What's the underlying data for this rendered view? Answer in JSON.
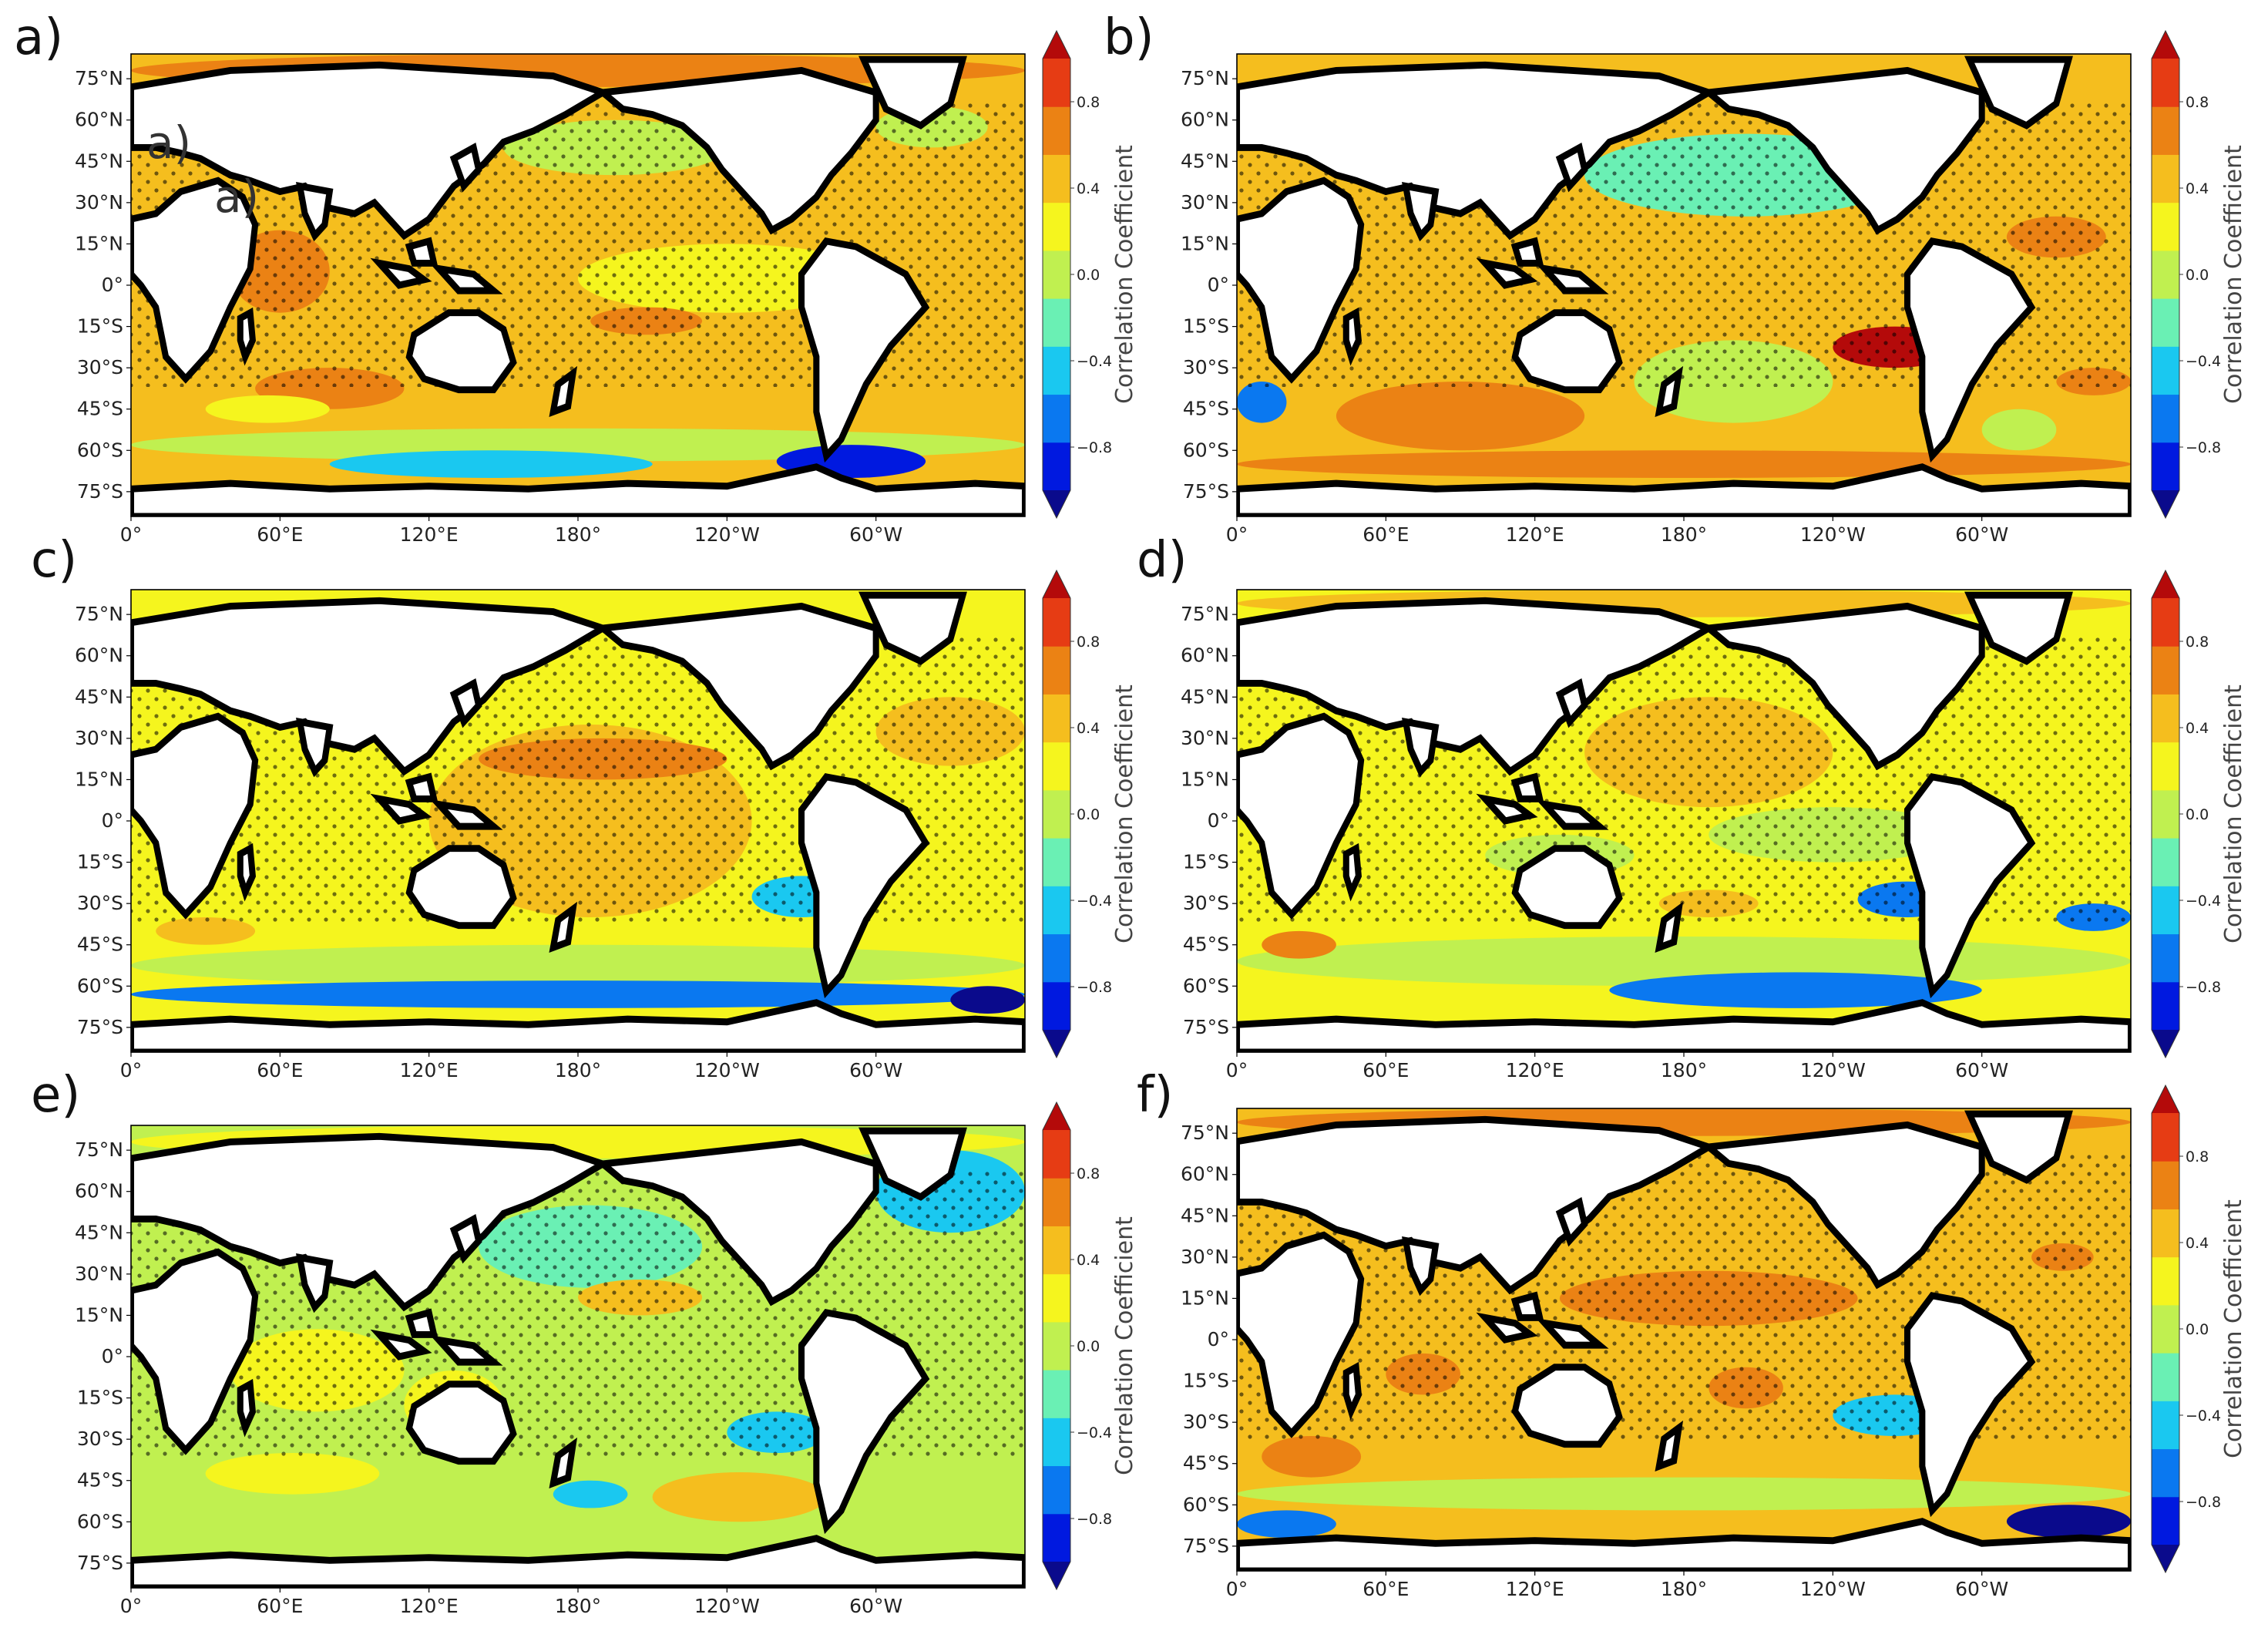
{
  "figure": {
    "colormap": [
      "#0a0a8c",
      "#0019e0",
      "#0a78f0",
      "#1ac8f0",
      "#6af0b4",
      "#c0f050",
      "#f5f51e",
      "#f5be1e",
      "#eb8214",
      "#e63c14",
      "#b40a0a"
    ],
    "land_color": "#ffffff",
    "coast_color": "#000000",
    "stipple_color": "#000000"
  },
  "artifact_labels": [
    "a)",
    "a)"
  ],
  "chart_data": [
    {
      "type": "heatmap",
      "panel": "a)",
      "x_ticks": [
        "0°",
        "60°E",
        "120°E",
        "180°",
        "120°W",
        "60°W"
      ],
      "y_ticks": [
        "75°N",
        "60°N",
        "45°N",
        "30°N",
        "15°N",
        "0°",
        "15°S",
        "30°S",
        "45°S",
        "60°S",
        "75°S"
      ],
      "xlim": [
        0,
        360
      ],
      "ylim": [
        -84,
        84
      ],
      "colorbar": {
        "label": "Correlation Coefficient",
        "ticks": [
          "0.8",
          "0.4",
          "0.0",
          "−0.4",
          "−0.8"
        ],
        "range": [
          -1,
          1
        ],
        "extend": "both"
      },
      "background_value": 0.45,
      "regions": [
        {
          "lon": [
            0,
            360
          ],
          "lat": [
            72,
            84
          ],
          "value": 0.6
        },
        {
          "lon": [
            150,
            240
          ],
          "lat": [
            40,
            60
          ],
          "value": 0.1
        },
        {
          "lon": [
            300,
            345
          ],
          "lat": [
            50,
            65
          ],
          "value": 0.1
        },
        {
          "lon": [
            120,
            250
          ],
          "lat": [
            5,
            25
          ],
          "value": 0.55
        },
        {
          "lon": [
            180,
            300
          ],
          "lat": [
            -10,
            15
          ],
          "value": 0.2
        },
        {
          "lon": [
            40,
            80
          ],
          "lat": [
            -10,
            20
          ],
          "value": 0.6
        },
        {
          "lon": [
            50,
            110
          ],
          "lat": [
            -45,
            -30
          ],
          "value": 0.6
        },
        {
          "lon": [
            185,
            230
          ],
          "lat": [
            -18,
            -8
          ],
          "value": 0.65
        },
        {
          "lon": [
            30,
            80
          ],
          "lat": [
            -50,
            -40
          ],
          "value": 0.2
        },
        {
          "lon": [
            0,
            360
          ],
          "lat": [
            -64,
            -52
          ],
          "value": 0.05
        },
        {
          "lon": [
            260,
            320
          ],
          "lat": [
            -70,
            -58
          ],
          "value": -0.75
        },
        {
          "lon": [
            80,
            210
          ],
          "lat": [
            -70,
            -60
          ],
          "value": -0.4
        }
      ]
    },
    {
      "type": "heatmap",
      "panel": "b)",
      "x_ticks": [
        "0°",
        "60°E",
        "120°E",
        "180°",
        "120°W",
        "60°W"
      ],
      "y_ticks": [
        "75°N",
        "60°N",
        "45°N",
        "30°N",
        "15°N",
        "0°",
        "15°S",
        "30°S",
        "45°S",
        "60°S",
        "75°S"
      ],
      "xlim": [
        0,
        360
      ],
      "ylim": [
        -84,
        84
      ],
      "colorbar": {
        "label": "Correlation Coefficient",
        "ticks": [
          "0.8",
          "0.4",
          "0.0",
          "−0.4",
          "−0.8"
        ],
        "range": [
          -1,
          1
        ],
        "extend": "both"
      },
      "background_value": 0.45,
      "regions": [
        {
          "lon": [
            140,
            270
          ],
          "lat": [
            25,
            55
          ],
          "value": -0.05
        },
        {
          "lon": [
            160,
            240
          ],
          "lat": [
            -50,
            -20
          ],
          "value": 0.0
        },
        {
          "lon": [
            0,
            20
          ],
          "lat": [
            -50,
            -35
          ],
          "value": -0.6
        },
        {
          "lon": [
            40,
            140
          ],
          "lat": [
            -60,
            -35
          ],
          "value": 0.7
        },
        {
          "lon": [
            240,
            290
          ],
          "lat": [
            -30,
            -15
          ],
          "value": 0.85
        },
        {
          "lon": [
            330,
            360
          ],
          "lat": [
            -40,
            -30
          ],
          "value": 0.75
        },
        {
          "lon": [
            310,
            350
          ],
          "lat": [
            10,
            25
          ],
          "value": 0.6
        },
        {
          "lon": [
            300,
            330
          ],
          "lat": [
            -60,
            -45
          ],
          "value": 0.0
        },
        {
          "lon": [
            0,
            360
          ],
          "lat": [
            -70,
            -60
          ],
          "value": 0.65
        },
        {
          "lon": [
            300,
            360
          ],
          "lat": [
            50,
            75
          ],
          "value": 0.55
        }
      ]
    },
    {
      "type": "heatmap",
      "panel": "c)",
      "x_ticks": [
        "0°",
        "60°E",
        "120°E",
        "180°",
        "120°W",
        "60°W"
      ],
      "y_ticks": [
        "75°N",
        "60°N",
        "45°N",
        "30°N",
        "15°N",
        "0°",
        "15°S",
        "30°S",
        "45°S",
        "60°S",
        "75°S"
      ],
      "xlim": [
        0,
        360
      ],
      "ylim": [
        -84,
        84
      ],
      "colorbar": {
        "label": "Correlation Coefficient",
        "ticks": [
          "0.8",
          "0.4",
          "0.0",
          "−0.4",
          "−0.8"
        ],
        "range": [
          -1,
          1
        ],
        "extend": "both"
      },
      "background_value": 0.25,
      "regions": [
        {
          "lon": [
            120,
            250
          ],
          "lat": [
            -35,
            35
          ],
          "value": 0.5
        },
        {
          "lon": [
            140,
            240
          ],
          "lat": [
            15,
            30
          ],
          "value": 0.65
        },
        {
          "lon": [
            0,
            360
          ],
          "lat": [
            -60,
            -45
          ],
          "value": 0.05
        },
        {
          "lon": [
            250,
            290
          ],
          "lat": [
            -35,
            -20
          ],
          "value": -0.4
        },
        {
          "lon": [
            0,
            360
          ],
          "lat": [
            -68,
            -58
          ],
          "value": -0.45
        },
        {
          "lon": [
            330,
            360
          ],
          "lat": [
            -70,
            -60
          ],
          "value": -0.8
        },
        {
          "lon": [
            10,
            50
          ],
          "lat": [
            -45,
            -35
          ],
          "value": 0.55
        },
        {
          "lon": [
            300,
            360
          ],
          "lat": [
            20,
            45
          ],
          "value": 0.45
        },
        {
          "lon": [
            40,
            110
          ],
          "lat": [
            -30,
            0
          ],
          "value": 0.25
        }
      ]
    },
    {
      "type": "heatmap",
      "panel": "d)",
      "x_ticks": [
        "0°",
        "60°E",
        "120°E",
        "180°",
        "120°W",
        "60°W"
      ],
      "y_ticks": [
        "75°N",
        "60°N",
        "45°N",
        "30°N",
        "15°N",
        "0°",
        "15°S",
        "30°S",
        "45°S",
        "60°S",
        "75°S"
      ],
      "xlim": [
        0,
        360
      ],
      "ylim": [
        -84,
        84
      ],
      "colorbar": {
        "label": "Correlation Coefficient",
        "ticks": [
          "0.8",
          "0.4",
          "0.0",
          "−0.4",
          "−0.8"
        ],
        "range": [
          -1,
          1
        ],
        "extend": "both"
      },
      "background_value": 0.3,
      "regions": [
        {
          "lon": [
            140,
            240
          ],
          "lat": [
            5,
            45
          ],
          "value": 0.45
        },
        {
          "lon": [
            190,
            290
          ],
          "lat": [
            -15,
            5
          ],
          "value": 0.1
        },
        {
          "lon": [
            100,
            160
          ],
          "lat": [
            -20,
            -5
          ],
          "value": 0.05
        },
        {
          "lon": [
            0,
            360
          ],
          "lat": [
            -60,
            -42
          ],
          "value": 0.05
        },
        {
          "lon": [
            250,
            290
          ],
          "lat": [
            -35,
            -22
          ],
          "value": -0.5
        },
        {
          "lon": [
            330,
            360
          ],
          "lat": [
            -40,
            -30
          ],
          "value": -0.55
        },
        {
          "lon": [
            150,
            300
          ],
          "lat": [
            -68,
            -55
          ],
          "value": -0.5
        },
        {
          "lon": [
            10,
            40
          ],
          "lat": [
            -50,
            -40
          ],
          "value": 0.65
        },
        {
          "lon": [
            170,
            210
          ],
          "lat": [
            -35,
            -25
          ],
          "value": 0.5
        },
        {
          "lon": [
            0,
            360
          ],
          "lat": [
            74,
            84
          ],
          "value": 0.55
        }
      ]
    },
    {
      "type": "heatmap",
      "panel": "e)",
      "x_ticks": [
        "0°",
        "60°E",
        "120°E",
        "180°",
        "120°W",
        "60°W"
      ],
      "y_ticks": [
        "75°N",
        "60°N",
        "45°N",
        "30°N",
        "15°N",
        "0°",
        "15°S",
        "30°S",
        "45°S",
        "60°S",
        "75°S"
      ],
      "xlim": [
        0,
        360
      ],
      "ylim": [
        -84,
        84
      ],
      "colorbar": {
        "label": "Correlation Coefficient",
        "ticks": [
          "0.8",
          "0.4",
          "0.0",
          "−0.4",
          "−0.8"
        ],
        "range": [
          -1,
          1
        ],
        "extend": "both"
      },
      "background_value": 0.05,
      "regions": [
        {
          "lon": [
            140,
            230
          ],
          "lat": [
            25,
            55
          ],
          "value": -0.2
        },
        {
          "lon": [
            300,
            360
          ],
          "lat": [
            45,
            75
          ],
          "value": -0.3
        },
        {
          "lon": [
            180,
            230
          ],
          "lat": [
            15,
            28
          ],
          "value": 0.45
        },
        {
          "lon": [
            110,
            150
          ],
          "lat": [
            -30,
            -5
          ],
          "value": 0.3
        },
        {
          "lon": [
            30,
            100
          ],
          "lat": [
            -50,
            -35
          ],
          "value": 0.25
        },
        {
          "lon": [
            210,
            280
          ],
          "lat": [
            -60,
            -42
          ],
          "value": 0.5
        },
        {
          "lon": [
            240,
            280
          ],
          "lat": [
            -35,
            -20
          ],
          "value": -0.35
        },
        {
          "lon": [
            170,
            200
          ],
          "lat": [
            -55,
            -45
          ],
          "value": -0.35
        },
        {
          "lon": [
            0,
            360
          ],
          "lat": [
            72,
            84
          ],
          "value": 0.2
        },
        {
          "lon": [
            40,
            110
          ],
          "lat": [
            -20,
            10
          ],
          "value": 0.2
        }
      ]
    },
    {
      "type": "heatmap",
      "panel": "f)",
      "x_ticks": [
        "0°",
        "60°E",
        "120°E",
        "180°",
        "120°W",
        "60°W"
      ],
      "y_ticks": [
        "75°N",
        "60°N",
        "45°N",
        "30°N",
        "15°N",
        "0°",
        "15°S",
        "30°S",
        "45°S",
        "60°S",
        "75°S"
      ],
      "xlim": [
        0,
        360
      ],
      "ylim": [
        -84,
        84
      ],
      "colorbar": {
        "label": "Correlation Coefficient",
        "ticks": [
          "0.8",
          "0.4",
          "0.0",
          "−0.4",
          "−0.8"
        ],
        "range": [
          -1,
          1
        ],
        "extend": "both"
      },
      "background_value": 0.45,
      "regions": [
        {
          "lon": [
            130,
            250
          ],
          "lat": [
            5,
            25
          ],
          "value": 0.65
        },
        {
          "lon": [
            60,
            90
          ],
          "lat": [
            -20,
            -5
          ],
          "value": 0.65
        },
        {
          "lon": [
            190,
            220
          ],
          "lat": [
            -25,
            -10
          ],
          "value": 0.65
        },
        {
          "lon": [
            10,
            50
          ],
          "lat": [
            -50,
            -35
          ],
          "value": 0.6
        },
        {
          "lon": [
            0,
            360
          ],
          "lat": [
            -62,
            -50
          ],
          "value": 0.1
        },
        {
          "lon": [
            240,
            290
          ],
          "lat": [
            -35,
            -20
          ],
          "value": -0.3
        },
        {
          "lon": [
            310,
            360
          ],
          "lat": [
            -72,
            -60
          ],
          "value": -0.8
        },
        {
          "lon": [
            0,
            40
          ],
          "lat": [
            -72,
            -62
          ],
          "value": -0.6
        },
        {
          "lon": [
            0,
            360
          ],
          "lat": [
            74,
            84
          ],
          "value": 0.6
        },
        {
          "lon": [
            320,
            345
          ],
          "lat": [
            25,
            35
          ],
          "value": 0.6
        }
      ]
    }
  ]
}
